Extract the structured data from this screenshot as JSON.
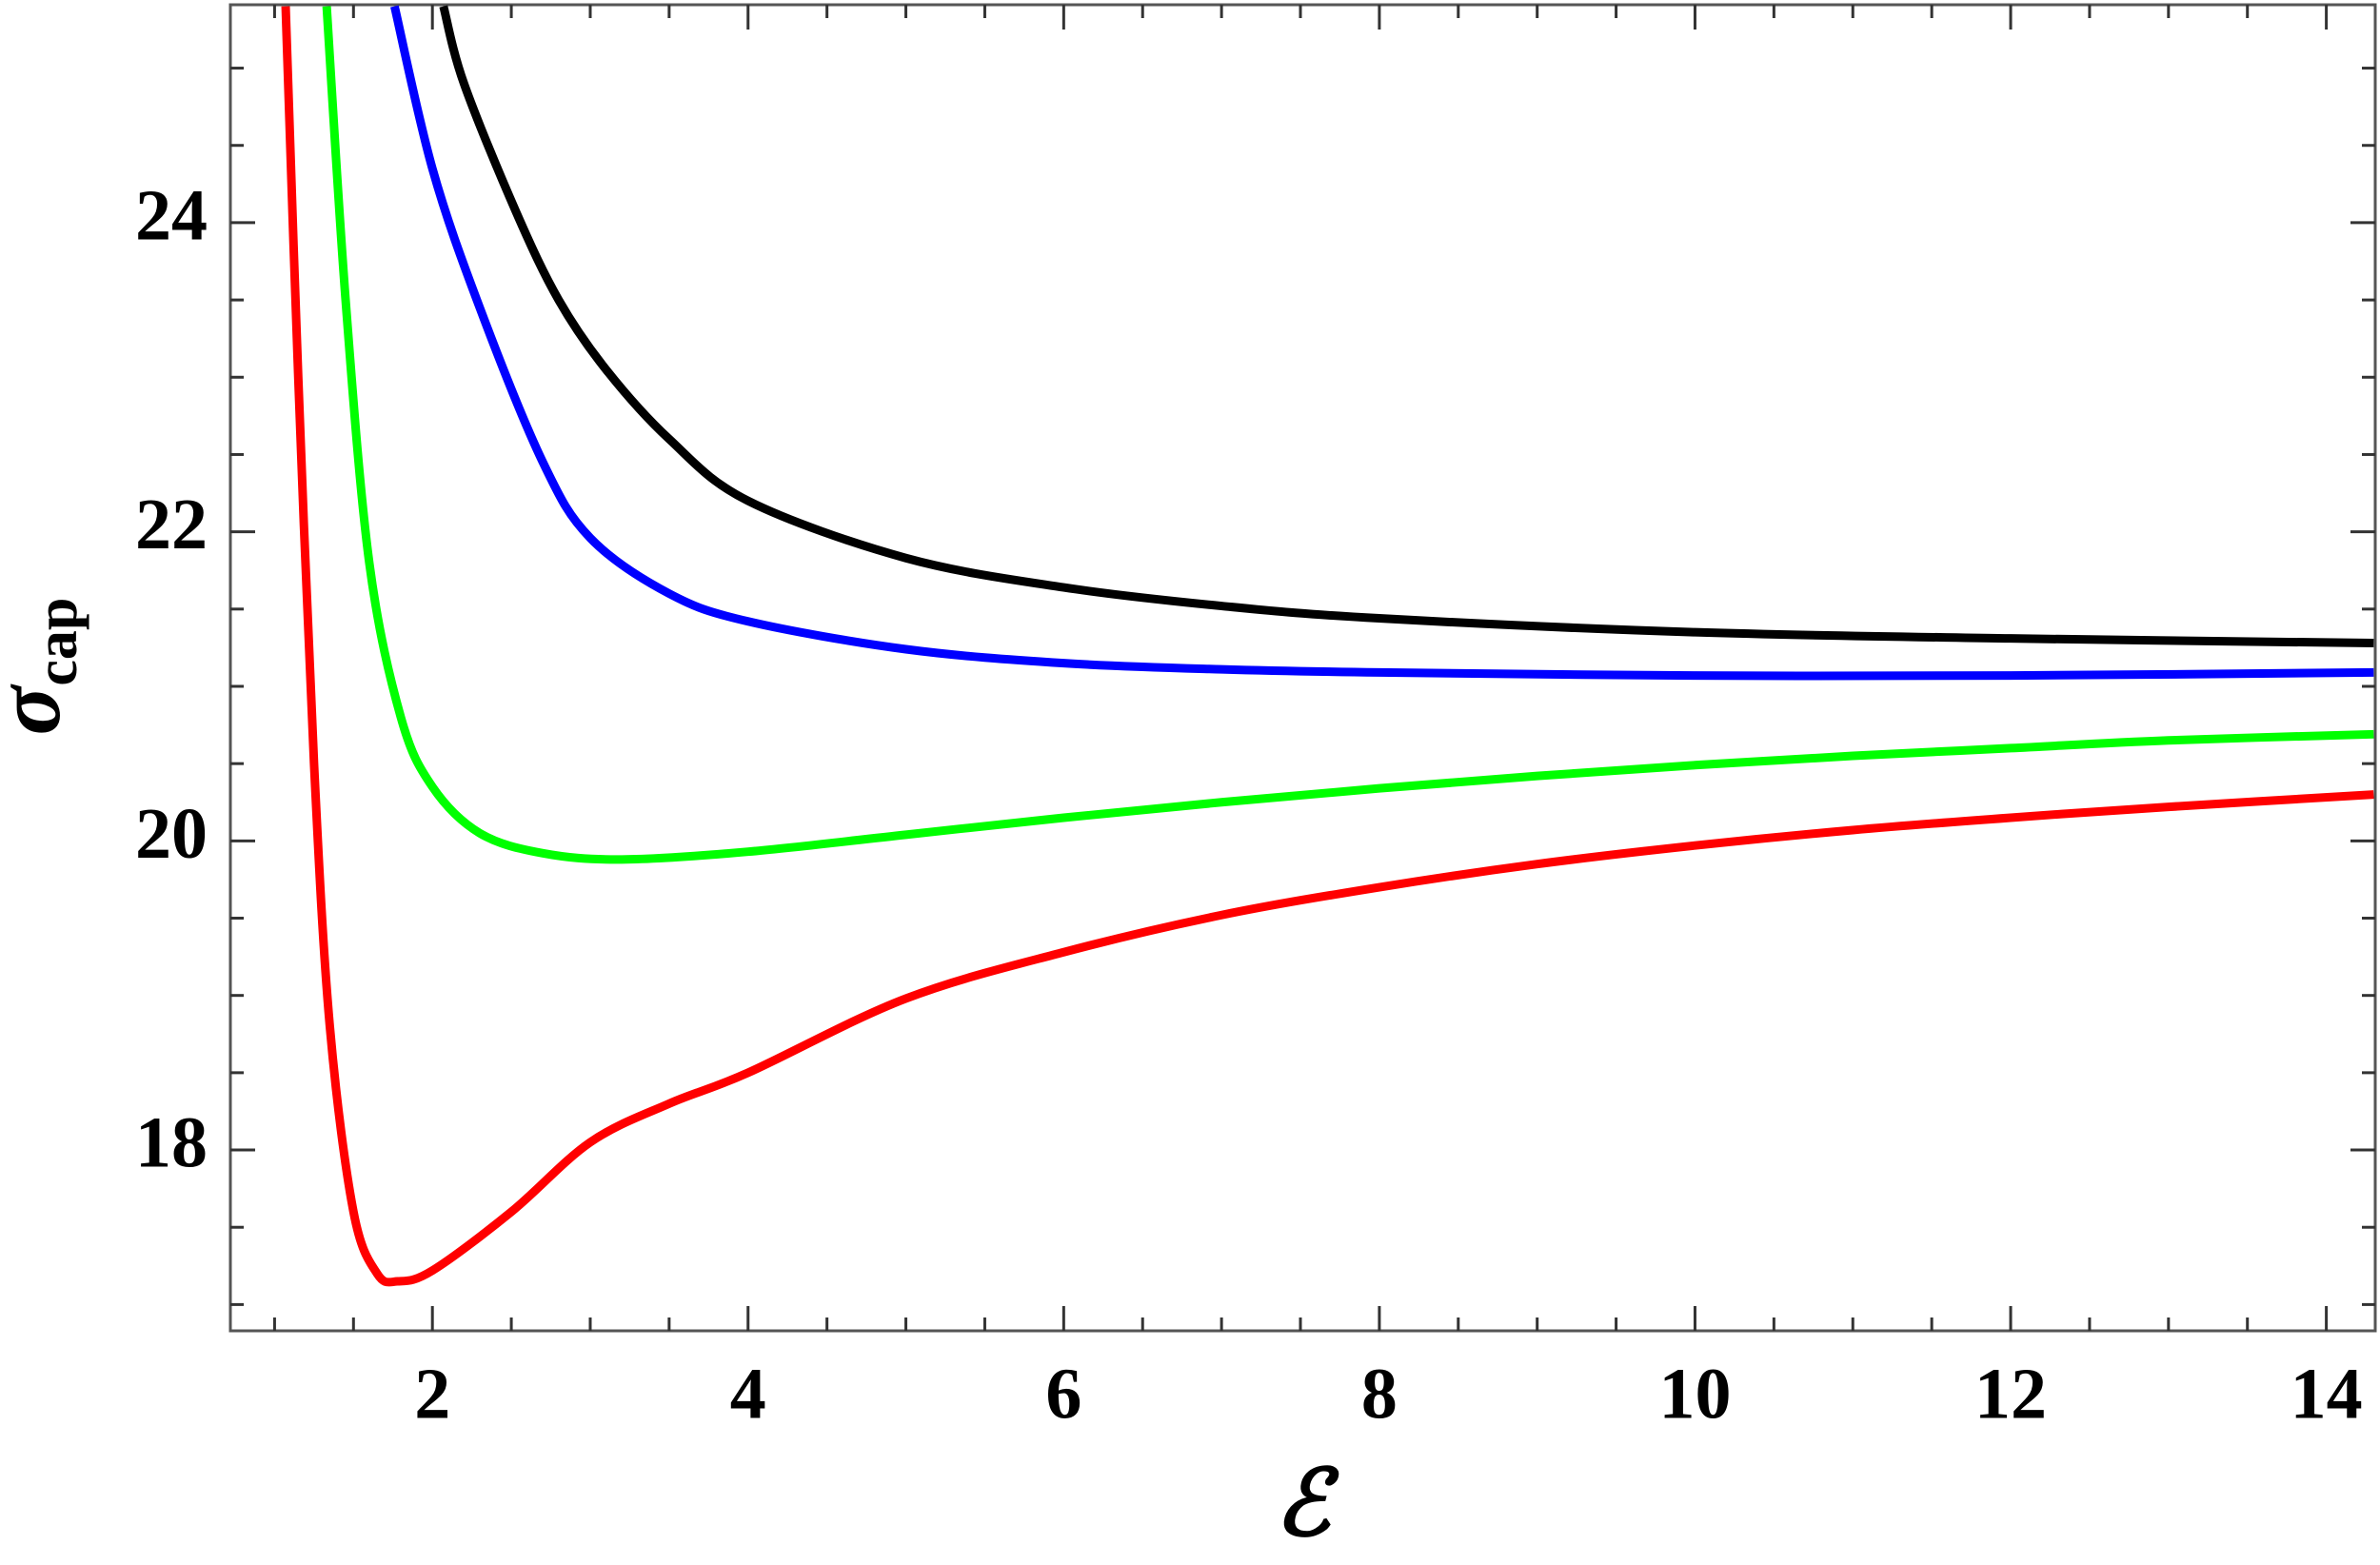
{
  "chart_data": {
    "type": "line",
    "xlabel": "ℰ",
    "ylabel": "σ",
    "ylabel_subscript": "cap",
    "xlim": [
      0.72,
      14.31
    ],
    "ylim": [
      16.83,
      25.41
    ],
    "xticks": [
      2,
      4,
      6,
      8,
      10,
      12,
      14
    ],
    "yticks": [
      18,
      20,
      22,
      24
    ],
    "x_minor_ticks": [
      1,
      1.5,
      2.5,
      3,
      3.5,
      4.5,
      5,
      5.5,
      6.5,
      7,
      7.5,
      8.5,
      9,
      9.5,
      10.5,
      11,
      11.5,
      12.5,
      13,
      13.5
    ],
    "y_minor_ticks": [
      17,
      17.5,
      18.5,
      19,
      19.5,
      20.5,
      21,
      21.5,
      22.5,
      23,
      23.5,
      24.5,
      25
    ],
    "series": [
      {
        "color": "#ff0000",
        "x": [
          1.07,
          1.15,
          1.25,
          1.35,
          1.5,
          1.65,
          1.78,
          2,
          2.5,
          3,
          3.5,
          4,
          5,
          6,
          7,
          8,
          9,
          10,
          11,
          12,
          13,
          14.3
        ],
        "values": [
          25.4,
          23,
          20.5,
          18.8,
          17.6,
          17.2,
          17.15,
          17.22,
          17.6,
          18.05,
          18.3,
          18.5,
          18.98,
          19.28,
          19.52,
          19.7,
          19.85,
          19.97,
          20.07,
          20.15,
          20.22,
          20.3
        ]
      },
      {
        "color": "#00ff00",
        "x": [
          1.33,
          1.45,
          1.6,
          1.8,
          2,
          2.3,
          2.7,
          3.2,
          4,
          5,
          6,
          7,
          8,
          9,
          10,
          11,
          12,
          13,
          14.3
        ],
        "values": [
          25.4,
          23.5,
          21.8,
          20.8,
          20.35,
          20.05,
          19.92,
          19.88,
          19.93,
          20.04,
          20.15,
          20.25,
          20.34,
          20.42,
          20.49,
          20.55,
          20.6,
          20.65,
          20.69
        ]
      },
      {
        "color": "#0000ff",
        "x": [
          1.76,
          2,
          2.3,
          2.7,
          3,
          3.5,
          4,
          5,
          6,
          7,
          8,
          10,
          12,
          14.3
        ],
        "values": [
          25.4,
          24.35,
          23.45,
          22.45,
          21.96,
          21.6,
          21.42,
          21.24,
          21.15,
          21.11,
          21.09,
          21.07,
          21.07,
          21.09
        ]
      },
      {
        "color": "#000000",
        "x": [
          2.07,
          2.2,
          2.53,
          2.8,
          3.1,
          3.5,
          4,
          5,
          6,
          7,
          8,
          10,
          12,
          14.3
        ],
        "values": [
          25.4,
          24.9,
          24.07,
          23.5,
          23.05,
          22.6,
          22.2,
          21.83,
          21.64,
          21.52,
          21.44,
          21.35,
          21.31,
          21.28
        ]
      }
    ]
  }
}
